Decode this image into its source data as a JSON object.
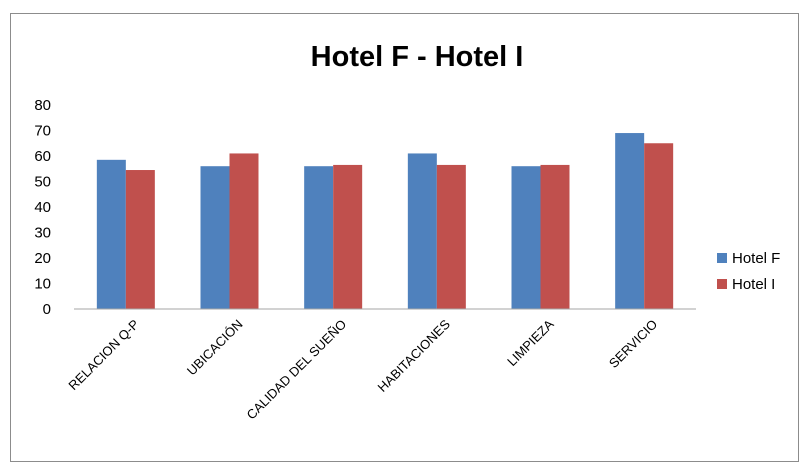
{
  "chart_data": {
    "type": "bar",
    "title": "Hotel F - Hotel I",
    "xlabel": "",
    "ylabel": "",
    "categories": [
      "RELACION Q-P",
      "UBICACIÓN",
      "CALIDAD DEL SUEÑO",
      "HABITACIONES",
      "LIMPIEZA",
      "SERVICIO"
    ],
    "series": [
      {
        "name": "Hotel F",
        "color": "#4f81bd",
        "values": [
          58.5,
          56,
          56,
          61,
          56,
          69
        ]
      },
      {
        "name": "Hotel I",
        "color": "#c0504d",
        "values": [
          54.5,
          61,
          56.5,
          56.5,
          56.5,
          65
        ]
      }
    ],
    "ylim": [
      0,
      80
    ],
    "yticks": [
      0,
      10,
      20,
      30,
      40,
      50,
      60,
      70,
      80
    ],
    "grid": false,
    "legend_position": "right"
  }
}
